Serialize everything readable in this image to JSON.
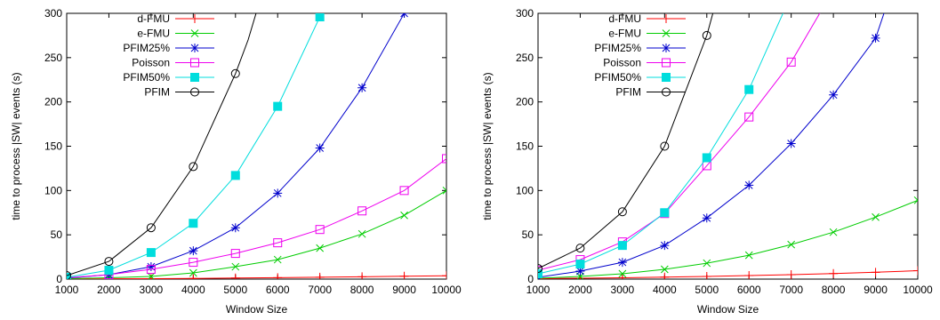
{
  "chart_data": [
    {
      "type": "line",
      "xlabel": "Window Size",
      "ylabel": "time to process |SW| events (s)",
      "xlim": [
        1000,
        10000
      ],
      "ylim": [
        0,
        300
      ],
      "xticks": [
        1000,
        2000,
        3000,
        4000,
        5000,
        6000,
        7000,
        8000,
        9000,
        10000
      ],
      "yticks": [
        0,
        50,
        100,
        150,
        200,
        250,
        300
      ],
      "grid": false,
      "legend": "top-left",
      "series": [
        {
          "name": "d-FMU",
          "color": "#ff0000",
          "marker": "plus",
          "points": [
            [
              1000,
              0.1
            ],
            [
              2000,
              0.3
            ],
            [
              3000,
              0.5
            ],
            [
              4000,
              0.8
            ],
            [
              5000,
              1.2
            ],
            [
              6000,
              1.6
            ],
            [
              7000,
              2.1
            ],
            [
              8000,
              2.6
            ],
            [
              9000,
              3.2
            ],
            [
              10000,
              3.8
            ]
          ]
        },
        {
          "name": "e-FMU",
          "color": "#00cc00",
          "marker": "x",
          "points": [
            [
              1000,
              0.5
            ],
            [
              2000,
              1.5
            ],
            [
              3000,
              3
            ],
            [
              4000,
              7
            ],
            [
              5000,
              14
            ],
            [
              6000,
              22
            ],
            [
              7000,
              35
            ],
            [
              8000,
              51
            ],
            [
              9000,
              72
            ],
            [
              10000,
              100
            ]
          ]
        },
        {
          "name": "PFIM25%",
          "color": "#0000cc",
          "marker": "star",
          "points": [
            [
              1000,
              1
            ],
            [
              2000,
              5
            ],
            [
              3000,
              14
            ],
            [
              4000,
              32
            ],
            [
              5000,
              58
            ],
            [
              6000,
              97
            ],
            [
              7000,
              148
            ],
            [
              8000,
              216
            ],
            [
              9000,
              300
            ],
            [
              9050,
              310
            ]
          ]
        },
        {
          "name": "Poisson",
          "color": "#ee00ee",
          "marker": "square-open",
          "points": [
            [
              1000,
              1.5
            ],
            [
              2000,
              5
            ],
            [
              3000,
              11
            ],
            [
              4000,
              19
            ],
            [
              5000,
              29
            ],
            [
              6000,
              41
            ],
            [
              7000,
              56
            ],
            [
              8000,
              77
            ],
            [
              9000,
              100
            ],
            [
              10000,
              136
            ]
          ]
        },
        {
          "name": "PFIM50%",
          "color": "#00dddd",
          "marker": "square-filled",
          "points": [
            [
              1000,
              2
            ],
            [
              2000,
              10
            ],
            [
              3000,
              30
            ],
            [
              4000,
              63
            ],
            [
              5000,
              117
            ],
            [
              6000,
              195
            ],
            [
              7000,
              296
            ],
            [
              7050,
              310
            ]
          ]
        },
        {
          "name": "PFIM",
          "color": "#000000",
          "marker": "circle-open",
          "points": [
            [
              1000,
              4
            ],
            [
              2000,
              20
            ],
            [
              3000,
              58
            ],
            [
              4000,
              127
            ],
            [
              5000,
              232
            ],
            [
              5300,
              270
            ],
            [
              5550,
              310
            ]
          ]
        }
      ]
    },
    {
      "type": "line",
      "xlabel": "Window Size",
      "ylabel": "time to process |SW| events (s)",
      "xlim": [
        1000,
        10000
      ],
      "ylim": [
        0,
        300
      ],
      "xticks": [
        1000,
        2000,
        3000,
        4000,
        5000,
        6000,
        7000,
        8000,
        9000,
        10000
      ],
      "yticks": [
        0,
        50,
        100,
        150,
        200,
        250,
        300
      ],
      "grid": false,
      "legend": "top-left",
      "series": [
        {
          "name": "d-FMU",
          "color": "#ff0000",
          "marker": "plus",
          "points": [
            [
              1000,
              0.5
            ],
            [
              2000,
              1
            ],
            [
              3000,
              1.5
            ],
            [
              4000,
              2.2
            ],
            [
              5000,
              3
            ],
            [
              6000,
              4
            ],
            [
              7000,
              5
            ],
            [
              8000,
              6.3
            ],
            [
              9000,
              7.7
            ],
            [
              10000,
              9.5
            ]
          ]
        },
        {
          "name": "e-FMU",
          "color": "#00cc00",
          "marker": "x",
          "points": [
            [
              1000,
              1
            ],
            [
              2000,
              3
            ],
            [
              3000,
              6
            ],
            [
              4000,
              11
            ],
            [
              5000,
              18
            ],
            [
              6000,
              27
            ],
            [
              7000,
              39
            ],
            [
              8000,
              53
            ],
            [
              9000,
              70
            ],
            [
              10000,
              89
            ]
          ]
        },
        {
          "name": "PFIM25%",
          "color": "#0000cc",
          "marker": "star",
          "points": [
            [
              1000,
              2
            ],
            [
              2000,
              9
            ],
            [
              3000,
              19
            ],
            [
              4000,
              38
            ],
            [
              5000,
              69
            ],
            [
              6000,
              106
            ],
            [
              7000,
              153
            ],
            [
              8000,
              208
            ],
            [
              9000,
              272
            ],
            [
              9200,
              300
            ],
            [
              9300,
              310
            ]
          ]
        },
        {
          "name": "Poisson",
          "color": "#ee00ee",
          "marker": "square-open",
          "points": [
            [
              1000,
              10
            ],
            [
              2000,
              22
            ],
            [
              3000,
              42
            ],
            [
              4000,
              74
            ],
            [
              5000,
              128
            ],
            [
              6000,
              183
            ],
            [
              7000,
              245
            ],
            [
              7800,
              310
            ]
          ]
        },
        {
          "name": "PFIM50%",
          "color": "#00dddd",
          "marker": "square-filled",
          "points": [
            [
              1000,
              6
            ],
            [
              2000,
              17
            ],
            [
              3000,
              38
            ],
            [
              4000,
              75
            ],
            [
              5000,
              137
            ],
            [
              6000,
              214
            ],
            [
              6900,
              310
            ]
          ]
        },
        {
          "name": "PFIM",
          "color": "#000000",
          "marker": "circle-open",
          "points": [
            [
              1000,
              12
            ],
            [
              2000,
              35
            ],
            [
              3000,
              76
            ],
            [
              4000,
              150
            ],
            [
              5000,
              275
            ],
            [
              5200,
              310
            ]
          ]
        }
      ]
    }
  ]
}
